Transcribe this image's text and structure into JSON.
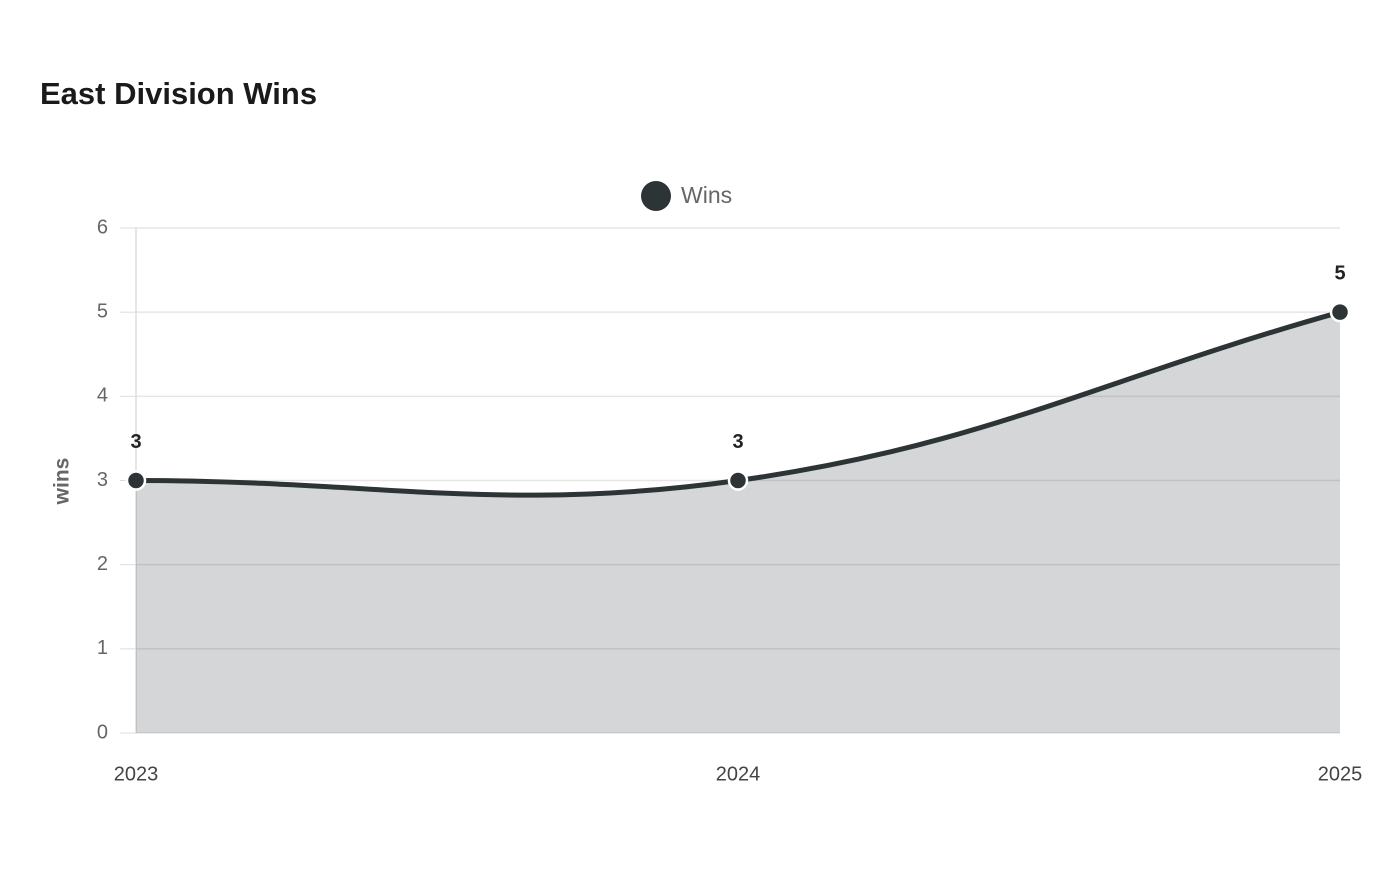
{
  "chart_data": {
    "type": "line",
    "title": "East Division Wins",
    "y_label": "wins",
    "categories": [
      "2023",
      "2024",
      "2025"
    ],
    "series": [
      {
        "name": "Wins",
        "color": "#2d3436",
        "values": [
          3,
          3,
          5
        ]
      }
    ],
    "ylim": [
      0,
      6
    ],
    "yticks": [
      0,
      1,
      2,
      3,
      4,
      5,
      6
    ],
    "grid": true,
    "fill": true,
    "data_labels": true,
    "legend": "top"
  }
}
